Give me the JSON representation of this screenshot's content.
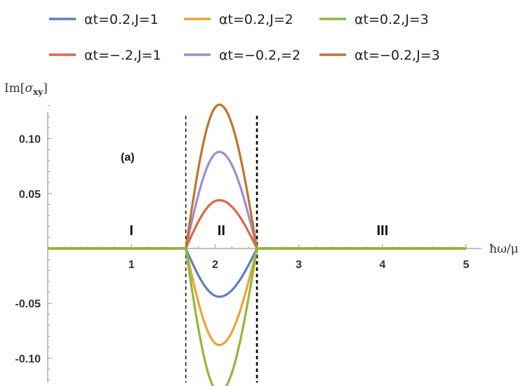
{
  "chart_data": {
    "type": "line",
    "ylabel": "Im[σxy]",
    "xlabel": "ħω/μ",
    "panel_label": "(a)",
    "xlim": [
      0,
      5
    ],
    "ylim": [
      -0.14,
      0.14
    ],
    "x_ticks": [
      1,
      2,
      3,
      4,
      5
    ],
    "x_tick_labels": [
      "1",
      "2",
      "3",
      "4",
      "5"
    ],
    "y_ticks": [
      0.1,
      0.05,
      -0.05,
      -0.1
    ],
    "y_tick_labels": [
      "0.10",
      "0.05",
      "-0.05",
      "-0.10"
    ],
    "regions": [
      "I",
      "II",
      "III"
    ],
    "region_boundaries": [
      1.65,
      2.5
    ],
    "peak_x": 2.05,
    "x": [
      0,
      1,
      1.65,
      1.8,
      1.9,
      2.0,
      2.05,
      2.1,
      2.2,
      2.3,
      2.4,
      2.5,
      3,
      4,
      5
    ],
    "series": [
      {
        "name": "αt=0.2,J=1",
        "color": "#5a7fc4",
        "values": [
          0,
          0,
          0,
          -0.024,
          -0.037,
          -0.043,
          -0.044,
          -0.043,
          -0.038,
          -0.029,
          -0.016,
          0,
          0,
          0,
          0
        ]
      },
      {
        "name": "αt=0.2,J=2",
        "color": "#f0a233",
        "values": [
          0,
          0,
          0,
          -0.048,
          -0.074,
          -0.086,
          -0.088,
          -0.086,
          -0.076,
          -0.058,
          -0.032,
          0,
          0,
          0,
          0
        ]
      },
      {
        "name": "αt=0.2,J=3",
        "color": "#8db93c",
        "values": [
          0,
          0,
          0,
          -0.072,
          -0.111,
          -0.129,
          -0.131,
          -0.129,
          -0.114,
          -0.087,
          -0.048,
          0,
          0,
          0,
          0
        ]
      },
      {
        "name": "αt=−.2,J=1",
        "color": "#e5633e",
        "values": [
          0,
          0,
          0,
          0.024,
          0.037,
          0.043,
          0.044,
          0.043,
          0.038,
          0.029,
          0.016,
          0,
          0,
          0,
          0
        ]
      },
      {
        "name": "αt=−0.2,=2",
        "color": "#9b8fcf",
        "values": [
          0,
          0,
          0,
          0.048,
          0.074,
          0.086,
          0.088,
          0.086,
          0.076,
          0.058,
          0.032,
          0,
          0,
          0,
          0
        ]
      },
      {
        "name": "αt=−0.2,J=3",
        "color": "#c0752a",
        "values": [
          0,
          0,
          0,
          0.072,
          0.111,
          0.129,
          0.131,
          0.129,
          0.114,
          0.087,
          0.048,
          0,
          0,
          0,
          0
        ]
      }
    ],
    "legend_position": "top",
    "grid": false
  }
}
